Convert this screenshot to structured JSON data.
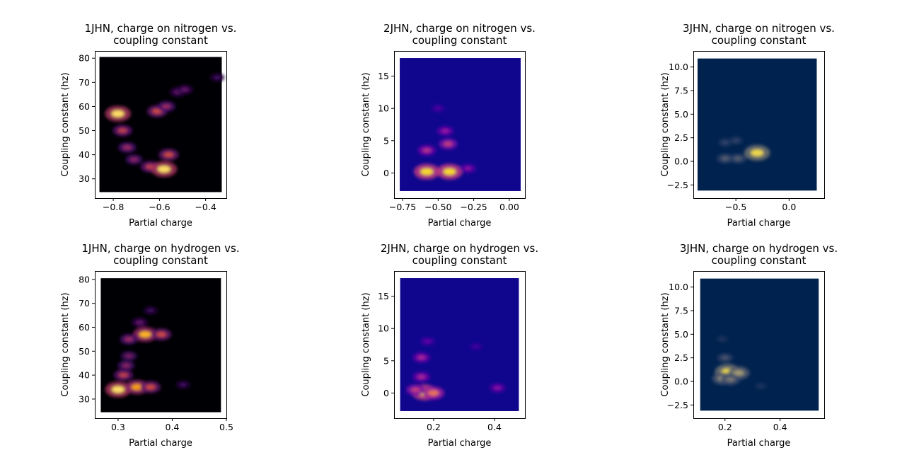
{
  "chart_data": [
    {
      "type": "heatmap",
      "title_line1": "1JHN, charge on nitrogen vs.",
      "title_line2": "coupling constant",
      "xlabel": "Partial charge",
      "ylabel": "Coupling constant (hz)",
      "xlim": [
        -0.88,
        -0.31
      ],
      "ylim": [
        22,
        83
      ],
      "xticks": [
        {
          "v": -0.8,
          "label": "−0.8"
        },
        {
          "v": -0.6,
          "label": "−0.6"
        },
        {
          "v": -0.4,
          "label": "−0.4"
        }
      ],
      "yticks": [
        {
          "v": 30,
          "label": "30"
        },
        {
          "v": 40,
          "label": "40"
        },
        {
          "v": 50,
          "label": "50"
        },
        {
          "v": 60,
          "label": "60"
        },
        {
          "v": 70,
          "label": "70"
        },
        {
          "v": 80,
          "label": "80"
        }
      ],
      "data_extent": {
        "x": [
          -0.86,
          -0.33
        ],
        "y": [
          24.5,
          80.5
        ]
      },
      "colormap": "inferno",
      "background_color": "#000004",
      "hotspots": [
        {
          "x": -0.78,
          "y": 57,
          "density": 1.0
        },
        {
          "x": -0.76,
          "y": 50,
          "density": 0.55
        },
        {
          "x": -0.74,
          "y": 43,
          "density": 0.45
        },
        {
          "x": -0.71,
          "y": 38,
          "density": 0.4
        },
        {
          "x": -0.64,
          "y": 35,
          "density": 0.55
        },
        {
          "x": -0.58,
          "y": 34,
          "density": 1.0
        },
        {
          "x": -0.56,
          "y": 40,
          "density": 0.6
        },
        {
          "x": -0.61,
          "y": 58,
          "density": 0.6
        },
        {
          "x": -0.57,
          "y": 60,
          "density": 0.45
        },
        {
          "x": -0.52,
          "y": 66,
          "density": 0.3
        },
        {
          "x": -0.49,
          "y": 67,
          "density": 0.3
        },
        {
          "x": -0.35,
          "y": 72,
          "density": 0.2
        }
      ]
    },
    {
      "type": "heatmap",
      "title_line1": "2JHN, charge on nitrogen vs.",
      "title_line2": "coupling constant",
      "xlabel": "Partial charge",
      "ylabel": "Coupling constant (hz)",
      "xlim": [
        -0.81,
        0.11
      ],
      "ylim": [
        -3.9,
        18.9
      ],
      "xticks": [
        {
          "v": -0.75,
          "label": "−0.75"
        },
        {
          "v": -0.5,
          "label": "−0.50"
        },
        {
          "v": -0.25,
          "label": "−0.25"
        },
        {
          "v": 0.0,
          "label": "0.00"
        }
      ],
      "yticks": [
        {
          "v": 0,
          "label": "0"
        },
        {
          "v": 5,
          "label": "5"
        },
        {
          "v": 10,
          "label": "10"
        },
        {
          "v": 15,
          "label": "15"
        }
      ],
      "data_extent": {
        "x": [
          -0.77,
          0.08
        ],
        "y": [
          -2.8,
          17.8
        ]
      },
      "colormap": "plasma",
      "background_color": "#10068d",
      "hotspots": [
        {
          "x": -0.58,
          "y": 0.2,
          "density": 1.0
        },
        {
          "x": -0.42,
          "y": 0.2,
          "density": 1.0
        },
        {
          "x": -0.58,
          "y": 3.5,
          "density": 0.45
        },
        {
          "x": -0.43,
          "y": 4.5,
          "density": 0.5
        },
        {
          "x": -0.45,
          "y": 6.5,
          "density": 0.35
        },
        {
          "x": -0.5,
          "y": 10,
          "density": 0.15
        },
        {
          "x": -0.29,
          "y": 0.7,
          "density": 0.3
        }
      ]
    },
    {
      "type": "heatmap",
      "title_line1": "3JHN, charge on nitrogen vs.",
      "title_line2": "coupling constant",
      "xlabel": "Partial charge",
      "ylabel": "Coupling constant (hz)",
      "xlim": [
        -0.9,
        0.33
      ],
      "ylim": [
        -3.9,
        11.7
      ],
      "xticks": [
        {
          "v": -0.5,
          "label": "−0.5"
        },
        {
          "v": 0.0,
          "label": "0.0"
        }
      ],
      "yticks": [
        {
          "v": -2.5,
          "label": "−2.5"
        },
        {
          "v": 0,
          "label": "0.0"
        },
        {
          "v": 2.5,
          "label": "2.5"
        },
        {
          "v": 5,
          "label": "5.0"
        },
        {
          "v": 7.5,
          "label": "7.5"
        },
        {
          "v": 10,
          "label": "10.0"
        }
      ],
      "data_extent": {
        "x": [
          -0.86,
          0.26
        ],
        "y": [
          -3.1,
          10.9
        ]
      },
      "colormap": "cividis",
      "background_color": "#00224e",
      "hotspots": [
        {
          "x": -0.3,
          "y": 0.9,
          "density": 1.0
        },
        {
          "x": -0.6,
          "y": 0.3,
          "density": 0.35
        },
        {
          "x": -0.48,
          "y": 0.3,
          "density": 0.35
        },
        {
          "x": -0.6,
          "y": 2.0,
          "density": 0.2
        },
        {
          "x": -0.5,
          "y": 2.2,
          "density": 0.2
        }
      ]
    },
    {
      "type": "heatmap",
      "title_line1": "1JHN, charge on hydrogen vs.",
      "title_line2": "coupling constant",
      "xlabel": "Partial charge",
      "ylabel": "Coupling constant (hz)",
      "xlim": [
        0.257,
        0.5
      ],
      "ylim": [
        22,
        83.5
      ],
      "xticks": [
        {
          "v": 0.3,
          "label": "0.3"
        },
        {
          "v": 0.4,
          "label": "0.4"
        },
        {
          "v": 0.5,
          "label": "0.5"
        }
      ],
      "yticks": [
        {
          "v": 30,
          "label": "30"
        },
        {
          "v": 40,
          "label": "40"
        },
        {
          "v": 50,
          "label": "50"
        },
        {
          "v": 60,
          "label": "60"
        },
        {
          "v": 70,
          "label": "70"
        },
        {
          "v": 80,
          "label": "80"
        }
      ],
      "data_extent": {
        "x": [
          0.268,
          0.49
        ],
        "y": [
          24.5,
          80.5
        ]
      },
      "colormap": "inferno",
      "background_color": "#000004",
      "hotspots": [
        {
          "x": 0.3,
          "y": 34,
          "density": 1.0
        },
        {
          "x": 0.335,
          "y": 35,
          "density": 0.85
        },
        {
          "x": 0.36,
          "y": 35,
          "density": 0.6
        },
        {
          "x": 0.35,
          "y": 57,
          "density": 0.9
        },
        {
          "x": 0.38,
          "y": 57,
          "density": 0.6
        },
        {
          "x": 0.32,
          "y": 55,
          "density": 0.45
        },
        {
          "x": 0.31,
          "y": 40,
          "density": 0.55
        },
        {
          "x": 0.315,
          "y": 44,
          "density": 0.4
        },
        {
          "x": 0.32,
          "y": 48,
          "density": 0.35
        },
        {
          "x": 0.34,
          "y": 62,
          "density": 0.3
        },
        {
          "x": 0.36,
          "y": 67,
          "density": 0.2
        },
        {
          "x": 0.42,
          "y": 36,
          "density": 0.2
        }
      ]
    },
    {
      "type": "heatmap",
      "title_line1": "2JHN, charge on hydrogen vs.",
      "title_line2": "coupling constant",
      "xlabel": "Partial charge",
      "ylabel": "Coupling constant (hz)",
      "xlim": [
        0.07,
        0.5
      ],
      "ylim": [
        -3.9,
        18.9
      ],
      "xticks": [
        {
          "v": 0.2,
          "label": "0.2"
        },
        {
          "v": 0.4,
          "label": "0.4"
        }
      ],
      "yticks": [
        {
          "v": 0,
          "label": "0"
        },
        {
          "v": 5,
          "label": "5"
        },
        {
          "v": 10,
          "label": "10"
        },
        {
          "v": 15,
          "label": "15"
        }
      ],
      "data_extent": {
        "x": [
          0.09,
          0.48
        ],
        "y": [
          -2.8,
          17.8
        ]
      },
      "colormap": "plasma",
      "background_color": "#10068d",
      "hotspots": [
        {
          "x": 0.17,
          "y": 0.1,
          "density": 1.0
        },
        {
          "x": 0.2,
          "y": 0.0,
          "density": 0.7
        },
        {
          "x": 0.14,
          "y": 0.5,
          "density": 0.5
        },
        {
          "x": 0.16,
          "y": 2.5,
          "density": 0.4
        },
        {
          "x": 0.16,
          "y": 5.5,
          "density": 0.4
        },
        {
          "x": 0.18,
          "y": 8,
          "density": 0.2
        },
        {
          "x": 0.41,
          "y": 0.8,
          "density": 0.3
        },
        {
          "x": 0.34,
          "y": 7.2,
          "density": 0.12
        }
      ]
    },
    {
      "type": "heatmap",
      "title_line1": "3JHN, charge on hydrogen vs.",
      "title_line2": "coupling constant",
      "xlabel": "Partial charge",
      "ylabel": "Coupling constant (hz)",
      "xlim": [
        0.085,
        0.56
      ],
      "ylim": [
        -3.9,
        11.7
      ],
      "xticks": [
        {
          "v": 0.2,
          "label": "0.2"
        },
        {
          "v": 0.4,
          "label": "0.4"
        }
      ],
      "yticks": [
        {
          "v": -2.5,
          "label": "−2.5"
        },
        {
          "v": 0,
          "label": "0.0"
        },
        {
          "v": 2.5,
          "label": "2.5"
        },
        {
          "v": 5,
          "label": "5.0"
        },
        {
          "v": 7.5,
          "label": "7.5"
        },
        {
          "v": 10,
          "label": "10.0"
        }
      ],
      "data_extent": {
        "x": [
          0.11,
          0.54
        ],
        "y": [
          -3.1,
          10.9
        ]
      },
      "colormap": "cividis",
      "background_color": "#00224e",
      "hotspots": [
        {
          "x": 0.21,
          "y": 1.0,
          "density": 1.0
        },
        {
          "x": 0.25,
          "y": 0.9,
          "density": 0.7
        },
        {
          "x": 0.19,
          "y": 0.3,
          "density": 0.6
        },
        {
          "x": 0.22,
          "y": 0.2,
          "density": 0.5
        },
        {
          "x": 0.2,
          "y": 2.5,
          "density": 0.3
        },
        {
          "x": 0.19,
          "y": 4.5,
          "density": 0.12
        },
        {
          "x": 0.33,
          "y": -0.5,
          "density": 0.12
        }
      ]
    }
  ]
}
